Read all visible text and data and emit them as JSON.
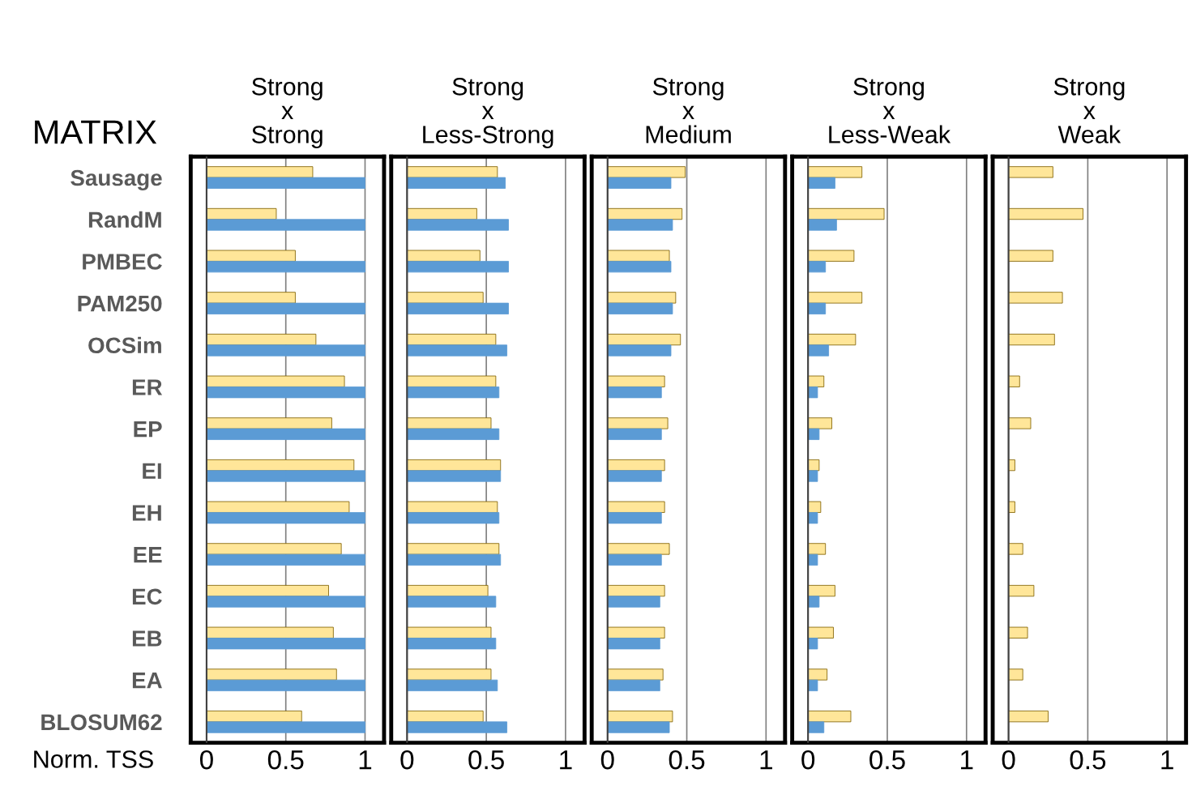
{
  "chart_data": [
    {
      "type": "bar",
      "orientation": "horizontal",
      "title": "Strong\nx\nStrong",
      "ylabel": "MATRIX",
      "xlabel": "Norm. TSS",
      "categories": [
        "Sausage",
        "RandM",
        "PMBEC",
        "PAM250",
        "OCSim",
        "ER",
        "EP",
        "EI",
        "EH",
        "EE",
        "EC",
        "EB",
        "EA",
        "BLOSUM62"
      ],
      "xlim": [
        -0.1,
        1.12
      ],
      "xticks": [
        0,
        0.5,
        1
      ],
      "grid": "x",
      "series": [
        {
          "color": "#ffe699",
          "values": [
            0.67,
            0.44,
            0.56,
            0.56,
            0.69,
            0.87,
            0.79,
            0.93,
            0.9,
            0.85,
            0.77,
            0.8,
            0.82,
            0.6
          ]
        },
        {
          "color": "#5b9bd5",
          "values": [
            1,
            1,
            1,
            1,
            1,
            1,
            1,
            1,
            1,
            1,
            1,
            1,
            1,
            1
          ]
        }
      ]
    },
    {
      "type": "bar",
      "orientation": "horizontal",
      "title": "Strong\nx\nLess-Strong",
      "categories": [
        null,
        null,
        null,
        null,
        null,
        null,
        null,
        null,
        null,
        null,
        null,
        null,
        null,
        null
      ],
      "tick_labels": "x",
      "xlim": [
        -0.1,
        1.12
      ],
      "xticks": [
        0,
        0.5,
        1
      ],
      "grid": "x",
      "series": [
        {
          "color": "#ffe699",
          "values": [
            0.57,
            0.44,
            0.46,
            0.48,
            0.56,
            0.56,
            0.53,
            0.59,
            0.57,
            0.58,
            0.51,
            0.53,
            0.53,
            0.48
          ]
        },
        {
          "color": "#5b9bd5",
          "values": [
            0.62,
            0.64,
            0.64,
            0.64,
            0.63,
            0.58,
            0.58,
            0.59,
            0.58,
            0.59,
            0.56,
            0.56,
            0.57,
            0.63
          ]
        }
      ]
    },
    {
      "type": "bar",
      "orientation": "horizontal",
      "title": "Strong\nx\nMedium",
      "categories": [
        null,
        null,
        null,
        null,
        null,
        null,
        null,
        null,
        null,
        null,
        null,
        null,
        null,
        null
      ],
      "tick_labels": "x",
      "xlim": [
        -0.1,
        1.12
      ],
      "xticks": [
        0,
        0.5,
        1
      ],
      "grid": "x",
      "series": [
        {
          "color": "#ffe699",
          "values": [
            0.49,
            0.47,
            0.39,
            0.43,
            0.46,
            0.36,
            0.38,
            0.36,
            0.36,
            0.39,
            0.36,
            0.36,
            0.35,
            0.41
          ]
        },
        {
          "color": "#5b9bd5",
          "values": [
            0.4,
            0.41,
            0.4,
            0.41,
            0.4,
            0.34,
            0.34,
            0.34,
            0.34,
            0.34,
            0.33,
            0.33,
            0.33,
            0.39
          ]
        }
      ]
    },
    {
      "type": "bar",
      "orientation": "horizontal",
      "title": "Strong\nx\nLess-Weak",
      "categories": [
        null,
        null,
        null,
        null,
        null,
        null,
        null,
        null,
        null,
        null,
        null,
        null,
        null,
        null
      ],
      "tick_labels": "x",
      "xlim": [
        -0.1,
        1.12
      ],
      "xticks": [
        0,
        0.5,
        1
      ],
      "grid": "x",
      "series": [
        {
          "color": "#ffe699",
          "values": [
            0.34,
            0.48,
            0.29,
            0.34,
            0.3,
            0.1,
            0.15,
            0.07,
            0.08,
            0.11,
            0.17,
            0.16,
            0.12,
            0.27
          ]
        },
        {
          "color": "#5b9bd5",
          "values": [
            0.17,
            0.18,
            0.11,
            0.11,
            0.13,
            0.06,
            0.07,
            0.06,
            0.06,
            0.06,
            0.07,
            0.06,
            0.06,
            0.1
          ]
        }
      ]
    },
    {
      "type": "bar",
      "orientation": "horizontal",
      "title": "Strong\nx\nWeak",
      "categories": [
        null,
        null,
        null,
        null,
        null,
        null,
        null,
        null,
        null,
        null,
        null,
        null,
        null,
        null
      ],
      "tick_labels": "x",
      "xlim": [
        -0.1,
        1.12
      ],
      "xticks": [
        0,
        0.5,
        1
      ],
      "grid": "x",
      "series": [
        {
          "color": "#ffe699",
          "values": [
            0.28,
            0.47,
            0.28,
            0.34,
            0.29,
            0.07,
            0.14,
            0.04,
            0.04,
            0.09,
            0.16,
            0.12,
            0.09,
            0.25
          ]
        }
      ]
    }
  ]
}
